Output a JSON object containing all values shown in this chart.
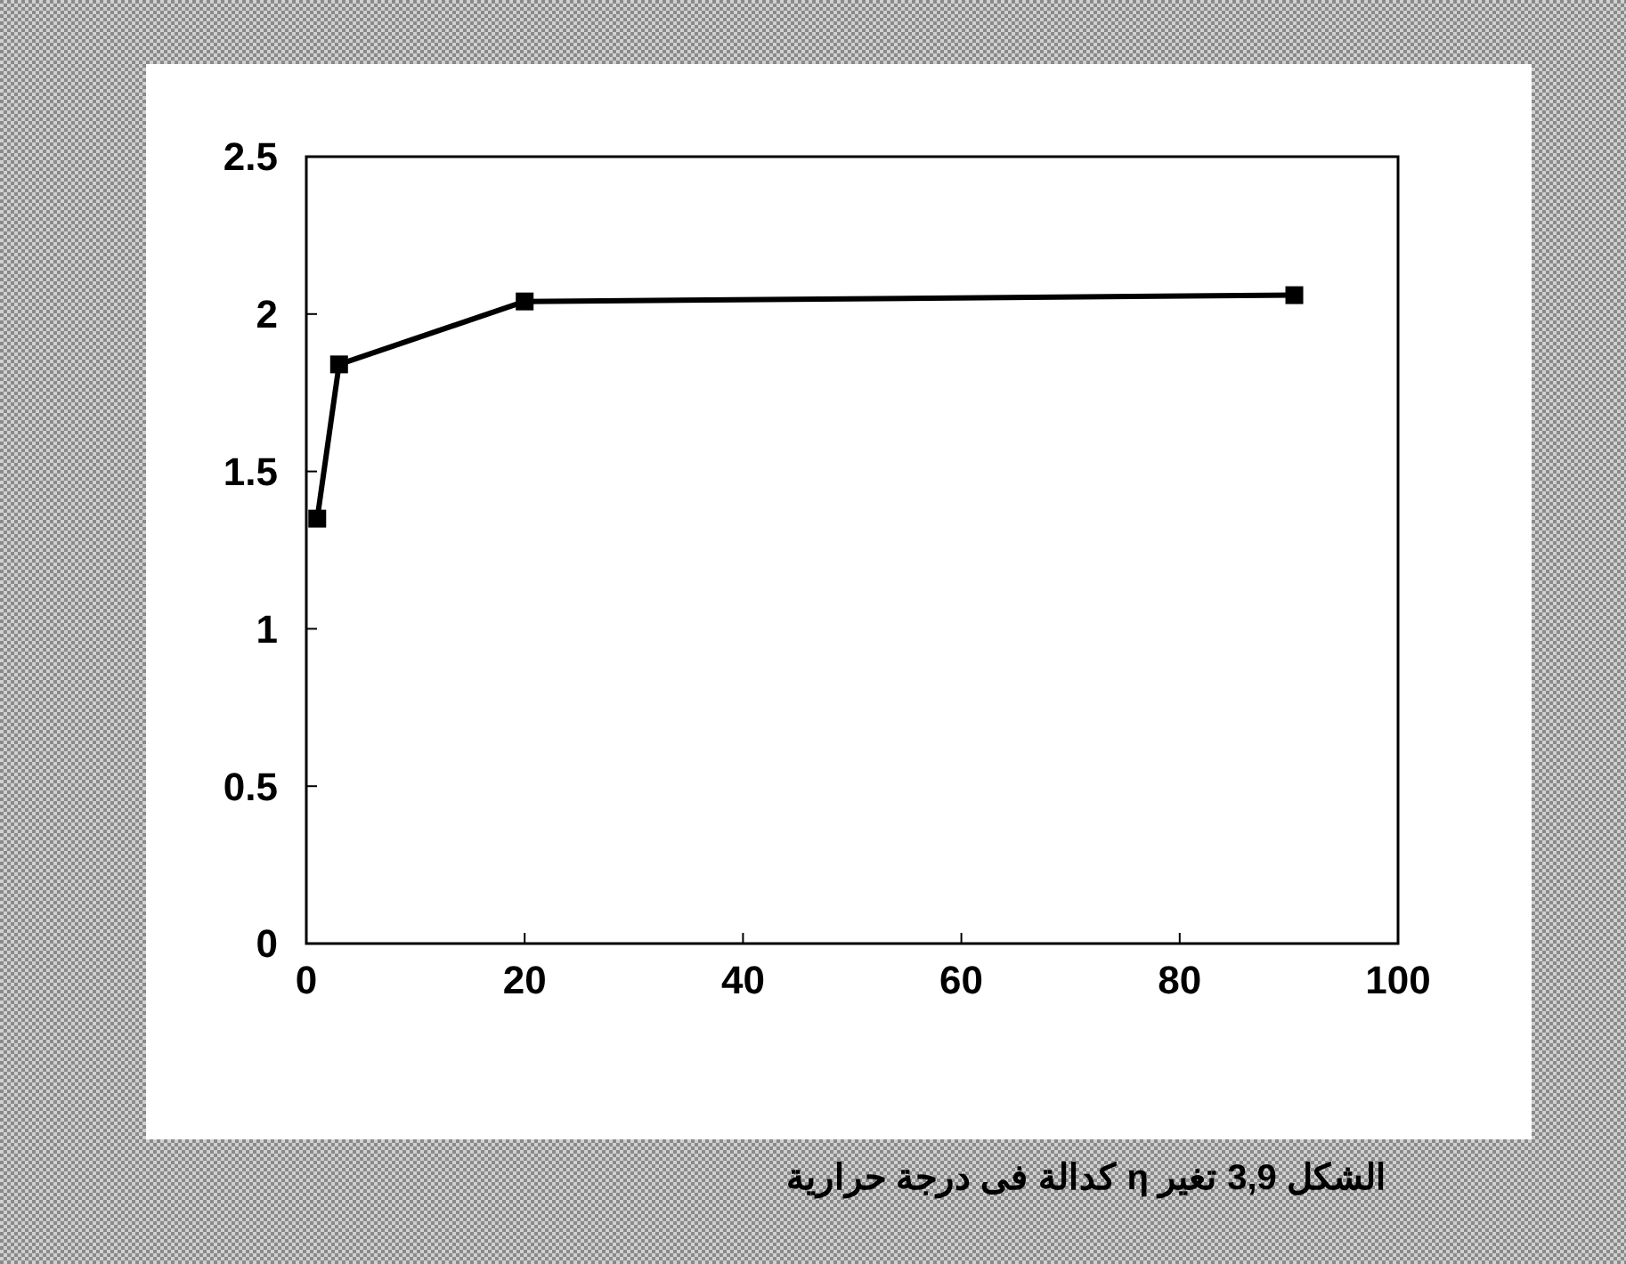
{
  "chart_data": {
    "type": "line",
    "title": "الشكل 3,9 تغير η كدالة فى درجة حرارية",
    "x": [
      1,
      3,
      20,
      90.5
    ],
    "series": [
      {
        "color": "#000000",
        "values": [
          1.35,
          1.84,
          2.04,
          2.06
        ]
      }
    ],
    "xlim": [
      0,
      100
    ],
    "xticks": [
      0,
      20,
      40,
      60,
      80,
      100
    ],
    "ylim": [
      0,
      2.5
    ],
    "yticks": [
      0,
      {
        "value": 0.5,
        "label": "0.5"
      },
      1,
      {
        "value": 1.5,
        "label": "1.5"
      },
      2,
      {
        "value": 2.5,
        "label": "2.5"
      }
    ],
    "marker": "square",
    "line_style": "solid",
    "grid": false
  }
}
